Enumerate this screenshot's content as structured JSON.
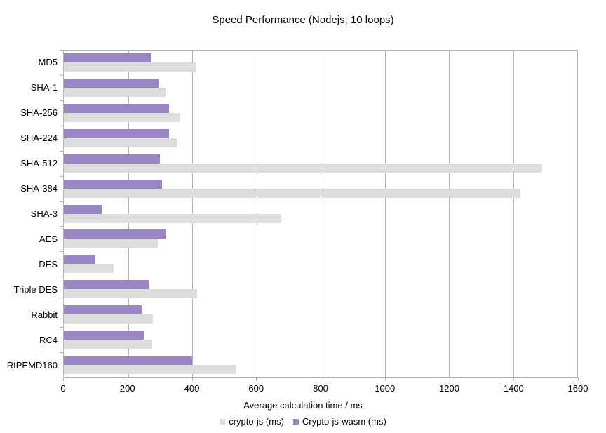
{
  "chart_data": {
    "type": "bar",
    "orientation": "horizontal",
    "title": "Speed Performance (Nodejs, 10 loops)",
    "xlabel": "Average calculation time / ms",
    "ylabel": "",
    "xlim": [
      0,
      1600
    ],
    "x_ticks": [
      0,
      200,
      400,
      600,
      800,
      1000,
      1200,
      1400,
      1600
    ],
    "grid": true,
    "legend_position": "bottom",
    "categories": [
      "MD5",
      "SHA-1",
      "SHA-256",
      "SHA-224",
      "SHA-512",
      "SHA-384",
      "SHA-3",
      "AES",
      "DES",
      "Triple DES",
      "Rabbit",
      "RC4",
      "RIPEMD160"
    ],
    "series": [
      {
        "name": "crypto-js (ms)",
        "color": "#dddddd",
        "values": [
          413,
          318,
          362,
          353,
          1491,
          1424,
          678,
          292,
          155,
          416,
          278,
          274,
          535
        ]
      },
      {
        "name": "Crypto-js-wasm (ms)",
        "color": "#9a86c3",
        "values": [
          270,
          295,
          327,
          327,
          300,
          307,
          118,
          318,
          99,
          265,
          242,
          249,
          401
        ]
      }
    ],
    "colors": {
      "gridline": "#b3b3b3",
      "axis": "#b3b3b3",
      "text": "#000000",
      "background": "#ffffff"
    }
  }
}
